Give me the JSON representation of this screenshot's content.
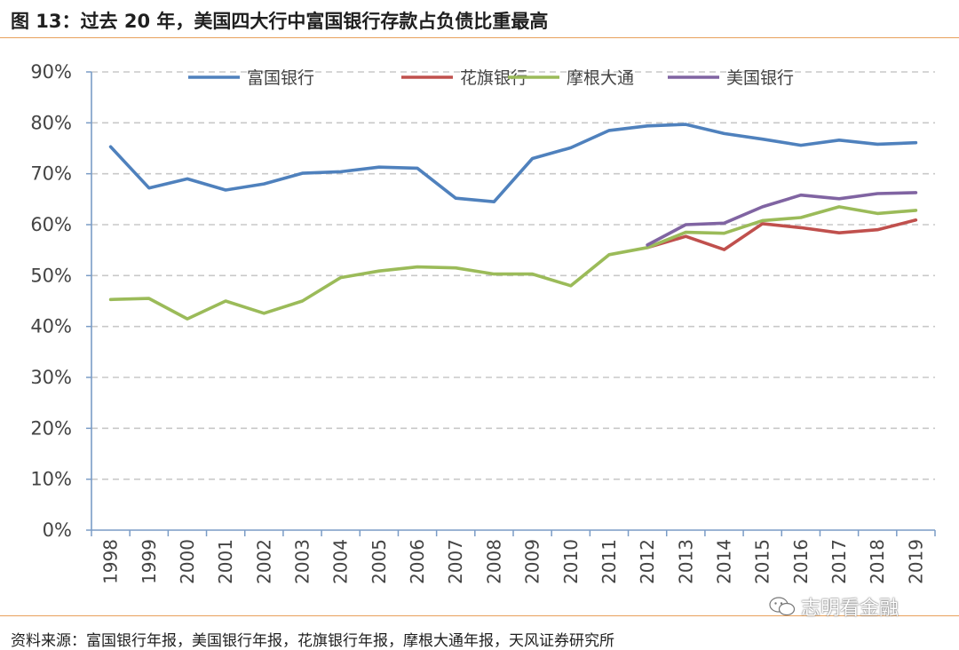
{
  "header": {
    "title": "图 13：过去 20 年，美国四大行中富国银行存款占负债比重最高"
  },
  "footer": {
    "source": "资料来源：富国银行年报，美国银行年报，花旗银行年报，摩根大通年报，天风证券研究所",
    "watermark": "志明看金融",
    "watermark_icon": "wechat-icon"
  },
  "chart_data": {
    "type": "line",
    "categories": [
      "1998",
      "1999",
      "2000",
      "2001",
      "2002",
      "2003",
      "2004",
      "2005",
      "2006",
      "2007",
      "2008",
      "2009",
      "2010",
      "2011",
      "2012",
      "2013",
      "2014",
      "2015",
      "2016",
      "2017",
      "2018",
      "2019"
    ],
    "y_ticks": [
      "0%",
      "10%",
      "20%",
      "30%",
      "40%",
      "50%",
      "60%",
      "70%",
      "80%",
      "90%"
    ],
    "ylim": [
      0,
      90
    ],
    "grid": "horizontal dashed",
    "legend_position": "top",
    "series": [
      {
        "name": "富国银行",
        "color": "#4f81bd",
        "values": [
          75.3,
          67.2,
          69.0,
          66.8,
          68.0,
          70.1,
          70.4,
          71.3,
          71.1,
          65.2,
          64.5,
          73.0,
          75.1,
          78.5,
          79.4,
          79.7,
          77.9,
          76.8,
          75.6,
          76.6,
          75.8,
          76.1
        ]
      },
      {
        "name": "花旗银行",
        "color": "#c0504d",
        "values": [
          null,
          null,
          null,
          null,
          null,
          null,
          null,
          null,
          null,
          null,
          null,
          null,
          null,
          null,
          55.5,
          57.7,
          55.1,
          60.2,
          59.4,
          58.4,
          59.0,
          60.9
        ]
      },
      {
        "name": "摩根大通",
        "color": "#9bbb59",
        "values": [
          45.3,
          45.5,
          41.5,
          45.0,
          42.6,
          45.0,
          49.6,
          50.9,
          51.7,
          51.5,
          50.3,
          50.3,
          48.0,
          54.1,
          55.5,
          58.5,
          58.3,
          60.8,
          61.4,
          63.5,
          62.2,
          62.8
        ]
      },
      {
        "name": "美国银行",
        "color": "#8064a2",
        "values": [
          null,
          null,
          null,
          null,
          null,
          null,
          null,
          null,
          null,
          null,
          null,
          null,
          null,
          null,
          56.0,
          60.0,
          60.3,
          63.5,
          65.8,
          65.1,
          66.1,
          66.3
        ]
      }
    ]
  }
}
